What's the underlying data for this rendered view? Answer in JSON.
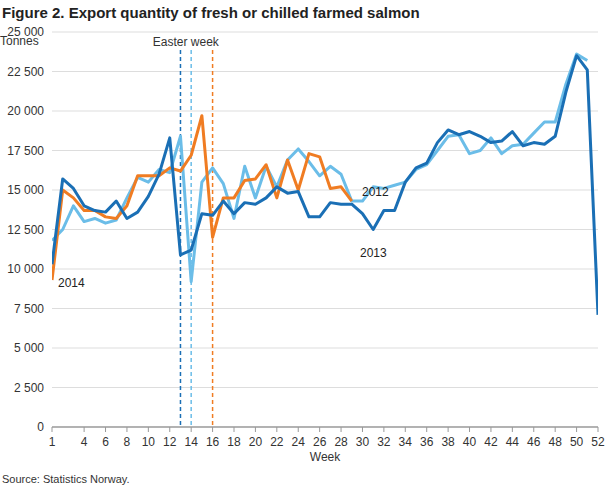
{
  "chart_data": {
    "type": "line",
    "title": "Figure 2. Export quantity of fresh or chilled farmed salmon",
    "y_label": "Tonnes",
    "x_label": "Week",
    "source": "Source: Statistics Norway.",
    "vline_label": "Easter week",
    "vlines": [
      {
        "x": 13,
        "color": "#1a6fb5"
      },
      {
        "x": 14,
        "color": "#6bbde8"
      },
      {
        "x": 16,
        "color": "#f07c22"
      }
    ],
    "x": [
      1,
      2,
      3,
      4,
      5,
      6,
      7,
      8,
      9,
      10,
      11,
      12,
      13,
      14,
      15,
      16,
      17,
      18,
      19,
      20,
      21,
      22,
      23,
      24,
      25,
      26,
      27,
      28,
      29,
      30,
      31,
      32,
      33,
      34,
      35,
      36,
      37,
      38,
      39,
      40,
      41,
      42,
      43,
      44,
      45,
      46,
      47,
      48,
      49,
      50,
      51,
      52
    ],
    "xlim": [
      1,
      52
    ],
    "xticks": [
      1,
      4,
      6,
      8,
      10,
      12,
      14,
      16,
      18,
      20,
      22,
      24,
      26,
      28,
      30,
      32,
      34,
      36,
      38,
      40,
      42,
      44,
      46,
      48,
      50,
      52
    ],
    "ylim": [
      0,
      25000
    ],
    "yticks": [
      0,
      {
        "value": 2500,
        "label": "2 500"
      },
      {
        "value": 5000,
        "label": "5 000"
      },
      {
        "value": 7500,
        "label": "7 500"
      },
      {
        "value": 10000,
        "label": "10 000"
      },
      {
        "value": 12500,
        "label": "12 500"
      },
      {
        "value": 15000,
        "label": "15 000"
      },
      {
        "value": 17500,
        "label": "17 500"
      },
      {
        "value": 20000,
        "label": "20 000"
      },
      {
        "value": 22500,
        "label": "22 500"
      },
      {
        "value": 25000,
        "label": "25 000"
      }
    ],
    "grid": true,
    "series": [
      {
        "name": "2012",
        "color": "#6bbde8",
        "values": [
          11800,
          12500,
          14000,
          13000,
          13200,
          12900,
          13100,
          14500,
          15800,
          15500,
          16300,
          16100,
          18400,
          9200,
          15500,
          16400,
          15400,
          13200,
          16500,
          14500,
          16500,
          15200,
          16900,
          17600,
          16800,
          15900,
          16500,
          16000,
          14300,
          14300,
          15200,
          15100,
          15300,
          15500,
          16300,
          16600,
          17500,
          18400,
          18500,
          17300,
          17500,
          18300,
          17300,
          17800,
          17900,
          18600,
          19300,
          19300,
          21700,
          23600,
          23200,
          null
        ]
      },
      {
        "name": "2013",
        "color": "#1a6fb5",
        "values": [
          10300,
          15700,
          15100,
          14000,
          13700,
          13600,
          14300,
          13200,
          13600,
          14600,
          16000,
          18300,
          10900,
          11200,
          13500,
          13400,
          14300,
          13500,
          14200,
          14100,
          14500,
          15200,
          14800,
          14900,
          13300,
          13300,
          14200,
          14100,
          14100,
          13500,
          12500,
          13700,
          13700,
          15500,
          16400,
          16700,
          18000,
          18800,
          18500,
          18700,
          18400,
          18000,
          18100,
          18700,
          17800,
          18000,
          17900,
          18400,
          21200,
          23500,
          22600,
          7100
        ]
      },
      {
        "name": "2014",
        "color": "#f07c22",
        "values": [
          9300,
          15000,
          14500,
          13700,
          13700,
          13300,
          13200,
          14000,
          15900,
          15900,
          15900,
          16400,
          16200,
          17200,
          19700,
          12000,
          14500,
          14500,
          15600,
          15700,
          16600,
          14500,
          16900,
          15000,
          17300,
          17100,
          15100,
          15200,
          14300,
          null,
          null,
          null,
          null,
          null,
          null,
          null,
          null,
          null,
          null,
          null,
          null,
          null,
          null,
          null,
          null,
          null,
          null,
          null,
          null,
          null,
          null,
          null
        ]
      }
    ]
  }
}
